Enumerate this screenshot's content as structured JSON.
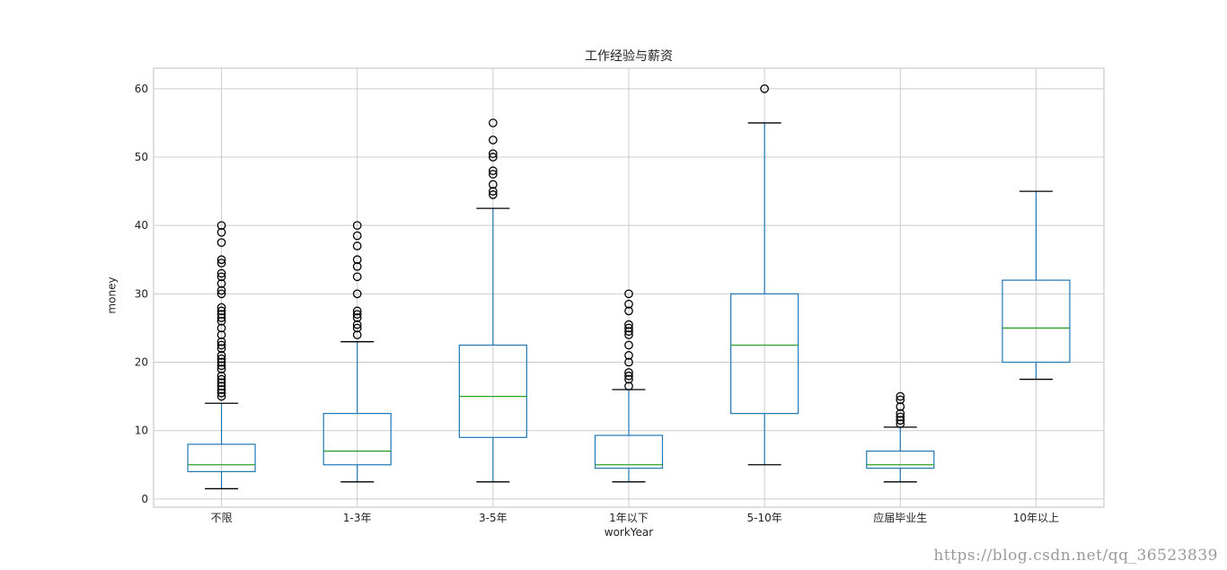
{
  "chart_data": {
    "type": "box",
    "title": "工作经验与薪资",
    "xlabel": "workYear",
    "ylabel": "money",
    "ylim": [
      -1.2,
      63
    ],
    "yticks": [
      0,
      10,
      20,
      30,
      40,
      50,
      60
    ],
    "grid": true,
    "colors": {
      "box": "#1f77b4",
      "median": "#2ca02c",
      "whisker": "#1f77b4",
      "cap": "#000000",
      "flier": "#000000",
      "grid": "#cccccc",
      "spine": "#bfbfbf"
    },
    "categories": [
      "不限",
      "1-3年",
      "3-5年",
      "1年以下",
      "5-10年",
      "应届毕业生",
      "10年以上"
    ],
    "boxes": [
      {
        "label": "不限",
        "whislo": 1.5,
        "q1": 4,
        "med": 5,
        "q3": 8,
        "whishi": 14,
        "fliers": [
          15,
          15.5,
          16,
          16.5,
          17,
          17.5,
          18,
          19,
          19.5,
          20,
          20.5,
          21,
          22,
          22.5,
          23,
          24,
          25,
          26,
          26.5,
          27,
          27.5,
          28,
          30,
          30.5,
          31.5,
          32.5,
          33,
          34.5,
          35,
          37.5,
          39,
          40
        ]
      },
      {
        "label": "1-3年",
        "whislo": 2.5,
        "q1": 5,
        "med": 7,
        "q3": 12.5,
        "whishi": 23,
        "fliers": [
          24,
          25,
          25.5,
          26.5,
          27,
          27.5,
          30,
          32.5,
          34,
          35,
          37,
          38.5,
          40
        ]
      },
      {
        "label": "3-5年",
        "whislo": 2.5,
        "q1": 9,
        "med": 15,
        "q3": 22.5,
        "whishi": 42.5,
        "fliers": [
          44.5,
          45,
          46,
          47.5,
          48,
          50,
          50.5,
          52.5,
          55
        ]
      },
      {
        "label": "1年以下",
        "whislo": 2.5,
        "q1": 4.5,
        "med": 5,
        "q3": 9.3,
        "whishi": 16,
        "fliers": [
          16.5,
          17.5,
          18,
          18.5,
          20,
          21,
          22.5,
          24,
          24.5,
          25,
          25.5,
          27.5,
          28.5,
          30
        ]
      },
      {
        "label": "5-10年",
        "whislo": 5,
        "q1": 12.5,
        "med": 22.5,
        "q3": 30,
        "whishi": 55,
        "fliers": [
          60
        ]
      },
      {
        "label": "应届毕业生",
        "whislo": 2.5,
        "q1": 4.5,
        "med": 5,
        "q3": 7,
        "whishi": 10.5,
        "fliers": [
          11,
          11.5,
          12,
          12.5,
          13.5,
          14.5,
          15
        ]
      },
      {
        "label": "10年以上",
        "whislo": 17.5,
        "q1": 20,
        "med": 25,
        "q3": 32,
        "whishi": 45,
        "fliers": []
      }
    ]
  },
  "watermark": "https://blog.csdn.net/qq_36523839"
}
